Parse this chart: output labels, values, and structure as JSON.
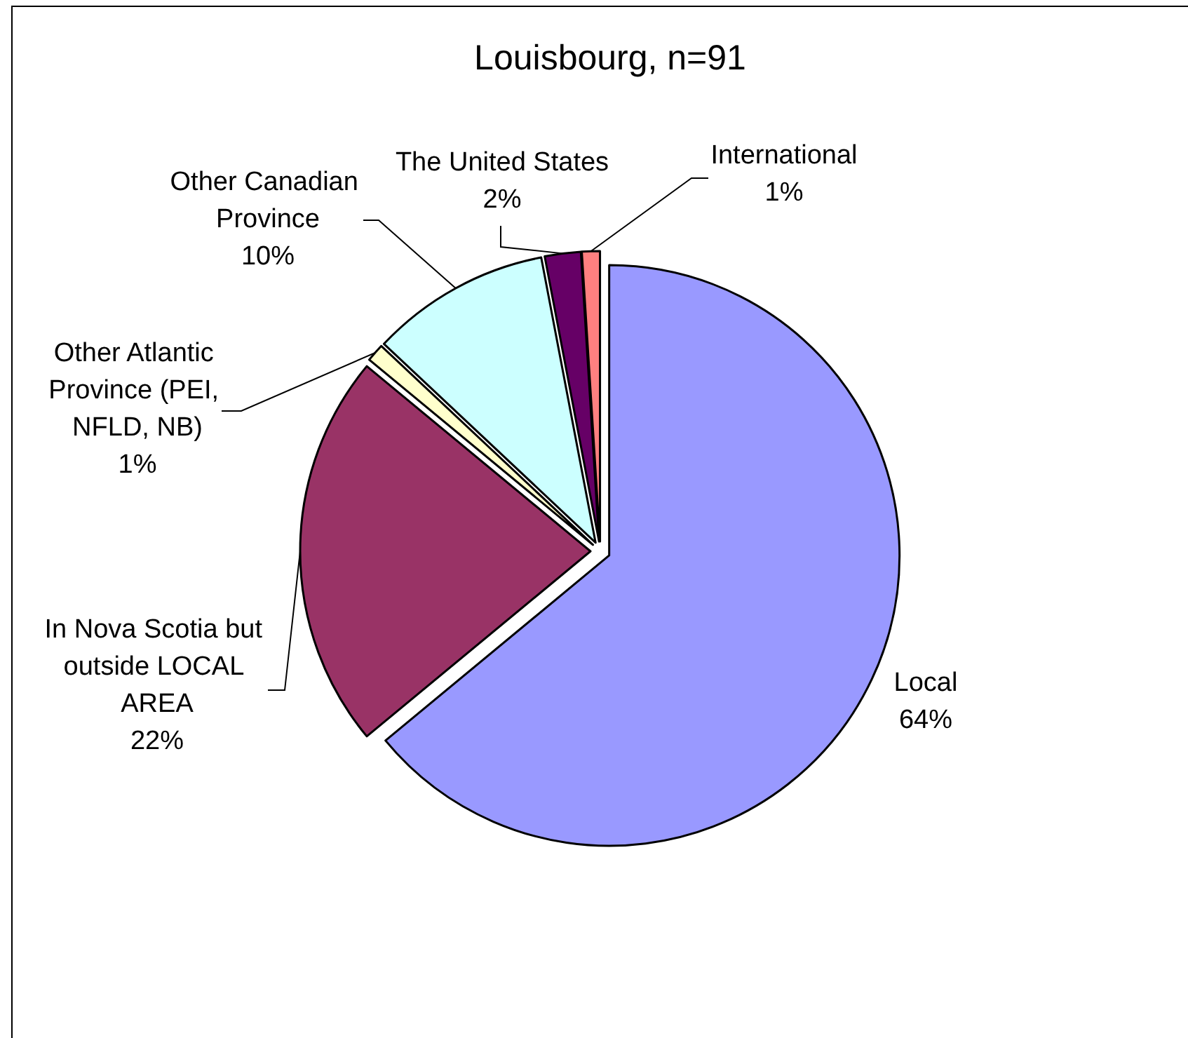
{
  "chart_data": {
    "type": "pie",
    "title": "Louisbourg, n=91",
    "categories": [
      "Local",
      "In Nova Scotia but outside LOCAL AREA",
      "Other Atlantic Province (PEI, NFLD, NB)",
      "Other Canadian Province",
      "The United States",
      "International"
    ],
    "values": [
      64,
      22,
      1,
      10,
      2,
      1
    ],
    "value_labels": [
      "64%",
      "22%",
      "1%",
      "10%",
      "2%",
      "1%"
    ],
    "colors": [
      "#9999ff",
      "#993366",
      "#ffffcc",
      "#ccffff",
      "#660066",
      "#ff8080"
    ],
    "legend": false
  }
}
